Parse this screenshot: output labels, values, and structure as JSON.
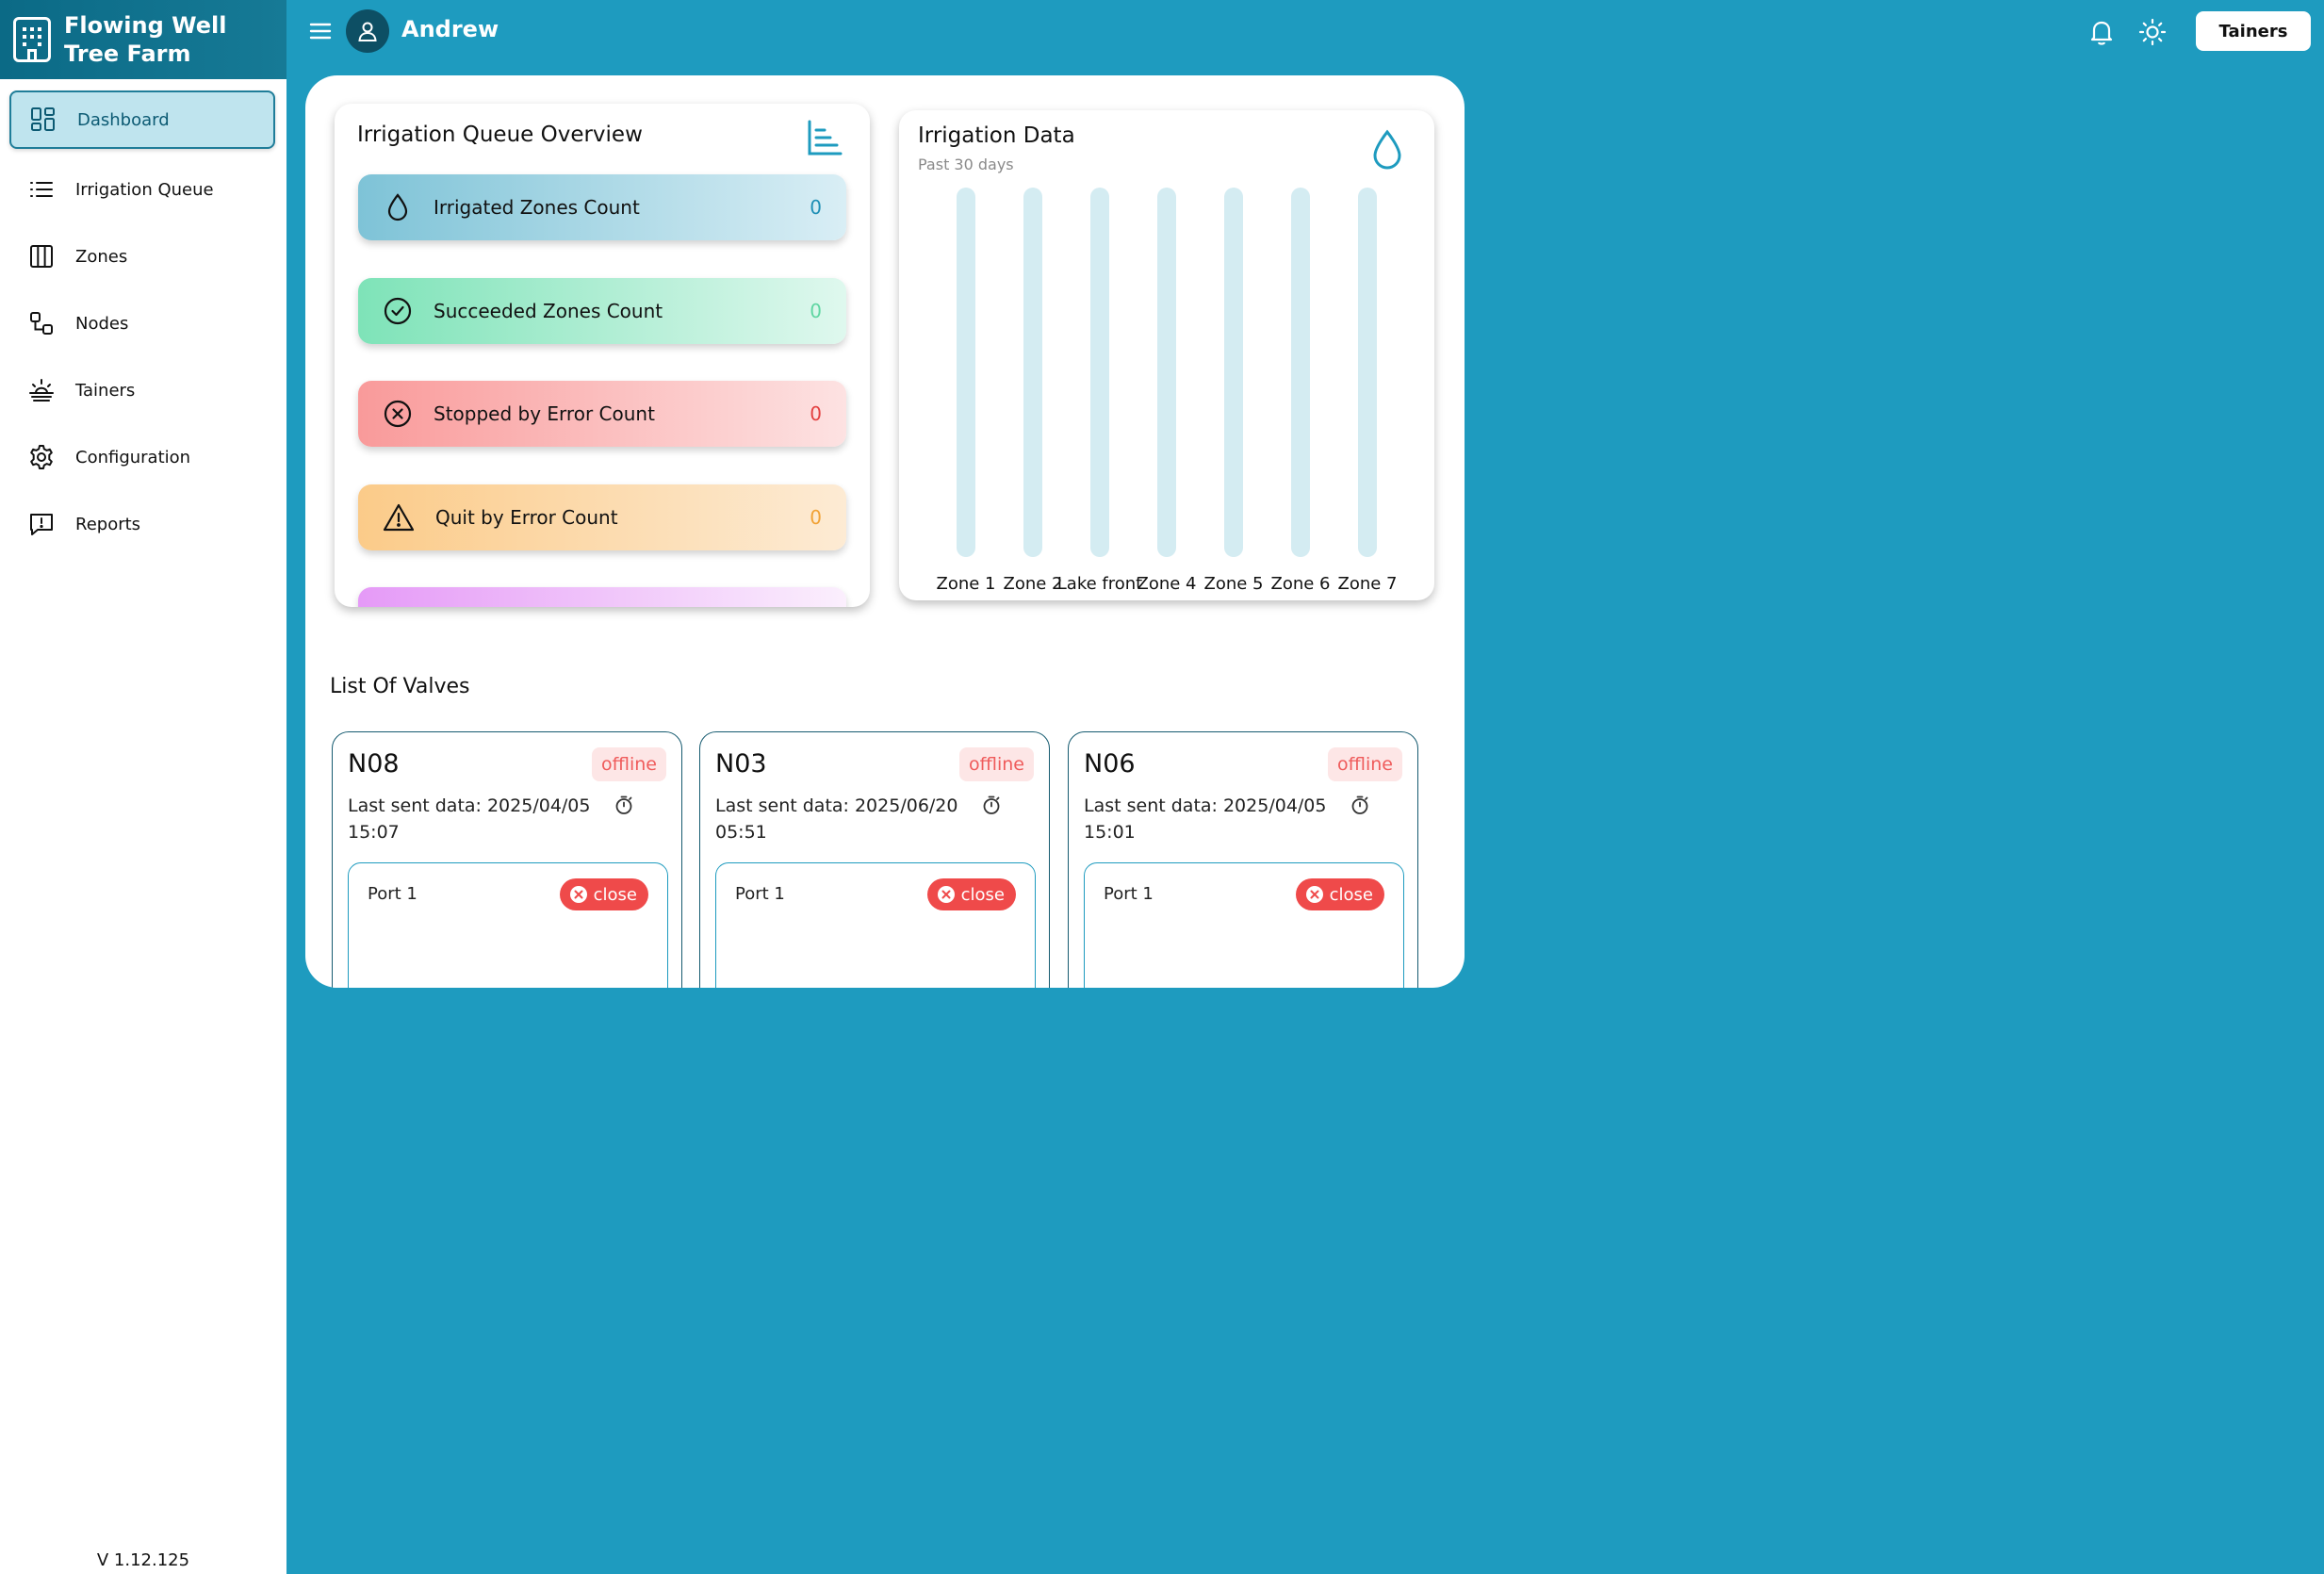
{
  "brand": {
    "name": "Flowing Well Tree Farm"
  },
  "header": {
    "username": "Andrew",
    "tenant_button": "Tainers"
  },
  "sidebar": {
    "items": [
      {
        "label": "Dashboard",
        "icon": "dashboard-icon",
        "active": true
      },
      {
        "label": "Irrigation Queue",
        "icon": "list-icon"
      },
      {
        "label": "Zones",
        "icon": "columns-icon"
      },
      {
        "label": "Nodes",
        "icon": "nodes-icon"
      },
      {
        "label": "Tainers",
        "icon": "sunrise-icon"
      },
      {
        "label": "Configuration",
        "icon": "gear-icon"
      },
      {
        "label": "Reports",
        "icon": "report-icon"
      }
    ],
    "version": "V 1.12.125"
  },
  "queue": {
    "title": "Irrigation Queue Overview",
    "stats": [
      {
        "label": "Irrigated Zones Count",
        "count": "0",
        "icon": "drop-icon"
      },
      {
        "label": "Succeeded Zones Count",
        "count": "0",
        "icon": "check-circle-icon"
      },
      {
        "label": "Stopped by Error Count",
        "count": "0",
        "icon": "x-circle-icon"
      },
      {
        "label": "Quit by Error Count",
        "count": "0",
        "icon": "warning-icon"
      }
    ]
  },
  "irrigation": {
    "title": "Irrigation Data",
    "subtitle": "Past 30 days"
  },
  "chart_data": {
    "type": "bar",
    "categories": [
      "Zone 1",
      "Zone 2",
      "Lake front",
      "Zone 4",
      "Zone 5",
      "Zone 6",
      "Zone 7"
    ],
    "values": [
      0,
      0,
      0,
      0,
      0,
      0,
      0
    ],
    "colors": {
      "track": "#d4ecf2",
      "bar": "#1e9bbf"
    }
  },
  "valves": {
    "title": "List Of Valves",
    "items": [
      {
        "name": "N08",
        "status": "offline",
        "last_sent": "Last sent data: 2025/04/05 15:07",
        "port": "Port 1",
        "port_state": "close"
      },
      {
        "name": "N03",
        "status": "offline",
        "last_sent": "Last sent data: 2025/06/20 05:51",
        "port": "Port 1",
        "port_state": "close"
      },
      {
        "name": "N06",
        "status": "offline",
        "last_sent": "Last sent data: 2025/04/05 15:01",
        "port": "Port 1",
        "port_state": "close"
      }
    ]
  },
  "colors": {
    "accent": "#1e9bbf",
    "dark": "#0b6a86",
    "offline": "#ef5b5b"
  }
}
